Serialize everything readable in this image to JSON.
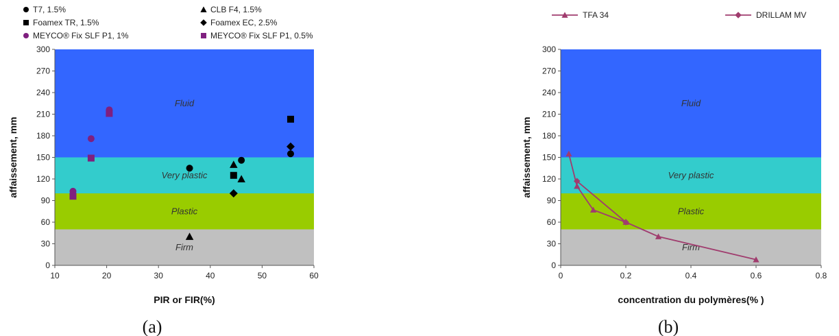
{
  "chart_data": [
    {
      "type": "scatter",
      "panel_label": "(a)",
      "xlabel": "PIR or FIR(%)",
      "ylabel": "affaissement, mm",
      "xlim": [
        10,
        60
      ],
      "ylim": [
        0,
        300
      ],
      "xticks": [
        "10",
        "20",
        "30",
        "40",
        "50",
        "60"
      ],
      "yticks": [
        "0",
        "30",
        "60",
        "90",
        "120",
        "150",
        "180",
        "210",
        "240",
        "270",
        "300"
      ],
      "grid": false,
      "legend_position": "top",
      "zones": [
        {
          "label": "Firm",
          "y0": 0,
          "y1": 50,
          "color": "#c0c0c0"
        },
        {
          "label": "Plastic",
          "y0": 50,
          "y1": 100,
          "color": "#99cc00"
        },
        {
          "label": "Very plastic",
          "y0": 100,
          "y1": 150,
          "color": "#33cccc"
        },
        {
          "label": "Fluid",
          "y0": 150,
          "y1": 300,
          "color": "#3366ff"
        }
      ],
      "series": [
        {
          "name": "T7, 1.5%",
          "marker": "circle",
          "color": "#000000",
          "points": [
            [
              36,
              135
            ],
            [
              46,
              146
            ],
            [
              55.5,
              155
            ]
          ]
        },
        {
          "name": "CLB F4, 1.5%",
          "marker": "triangle",
          "color": "#000000",
          "points": [
            [
              36,
              40
            ],
            [
              44.5,
              140
            ],
            [
              46,
              120
            ]
          ]
        },
        {
          "name": "Foamex TR, 1.5%",
          "marker": "square",
          "color": "#000000",
          "points": [
            [
              44.5,
              125
            ],
            [
              55.5,
              203
            ]
          ]
        },
        {
          "name": "Foamex EC, 2.5%",
          "marker": "diamond",
          "color": "#000000",
          "points": [
            [
              44.5,
              100
            ],
            [
              55.5,
              165
            ]
          ]
        },
        {
          "name": "MEYCO® Fix SLF P1, 1%",
          "marker": "circle",
          "color": "#7f1f7f",
          "points": [
            [
              13.5,
              103
            ],
            [
              17,
              176
            ],
            [
              20.5,
              216
            ]
          ]
        },
        {
          "name": "MEYCO® Fix SLF P1, 0.5%",
          "marker": "square",
          "color": "#7f1f7f",
          "points": [
            [
              13.5,
              96
            ],
            [
              17,
              149
            ],
            [
              20.5,
              211
            ]
          ]
        }
      ]
    },
    {
      "type": "line",
      "panel_label": "(b)",
      "xlabel": "concentration du polymères(% )",
      "ylabel": "affaissement, mm",
      "xlim": [
        0,
        0.8
      ],
      "ylim": [
        0,
        300
      ],
      "xticks": [
        "0",
        "0.2",
        "0.4",
        "0.6",
        "0.8"
      ],
      "yticks": [
        "0",
        "30",
        "60",
        "90",
        "120",
        "150",
        "180",
        "210",
        "240",
        "270",
        "300"
      ],
      "grid": false,
      "legend_position": "top",
      "zones": [
        {
          "label": "Firm",
          "y0": 0,
          "y1": 50,
          "color": "#c0c0c0"
        },
        {
          "label": "Plastic",
          "y0": 50,
          "y1": 100,
          "color": "#99cc00"
        },
        {
          "label": "Very plastic",
          "y0": 100,
          "y1": 150,
          "color": "#33cccc"
        },
        {
          "label": "Fluid",
          "y0": 150,
          "y1": 300,
          "color": "#3366ff"
        }
      ],
      "series": [
        {
          "name": "TFA 34",
          "marker": "triangle",
          "color": "#a03c6e",
          "points": [
            [
              0.025,
              155
            ],
            [
              0.05,
              110
            ],
            [
              0.1,
              77
            ],
            [
              0.2,
              60
            ],
            [
              0.3,
              40
            ],
            [
              0.6,
              8
            ]
          ]
        },
        {
          "name": "DRILLAM MV",
          "marker": "diamond",
          "color": "#a03c6e",
          "points": [
            [
              0.05,
              117
            ],
            [
              0.2,
              60
            ]
          ]
        }
      ]
    }
  ]
}
